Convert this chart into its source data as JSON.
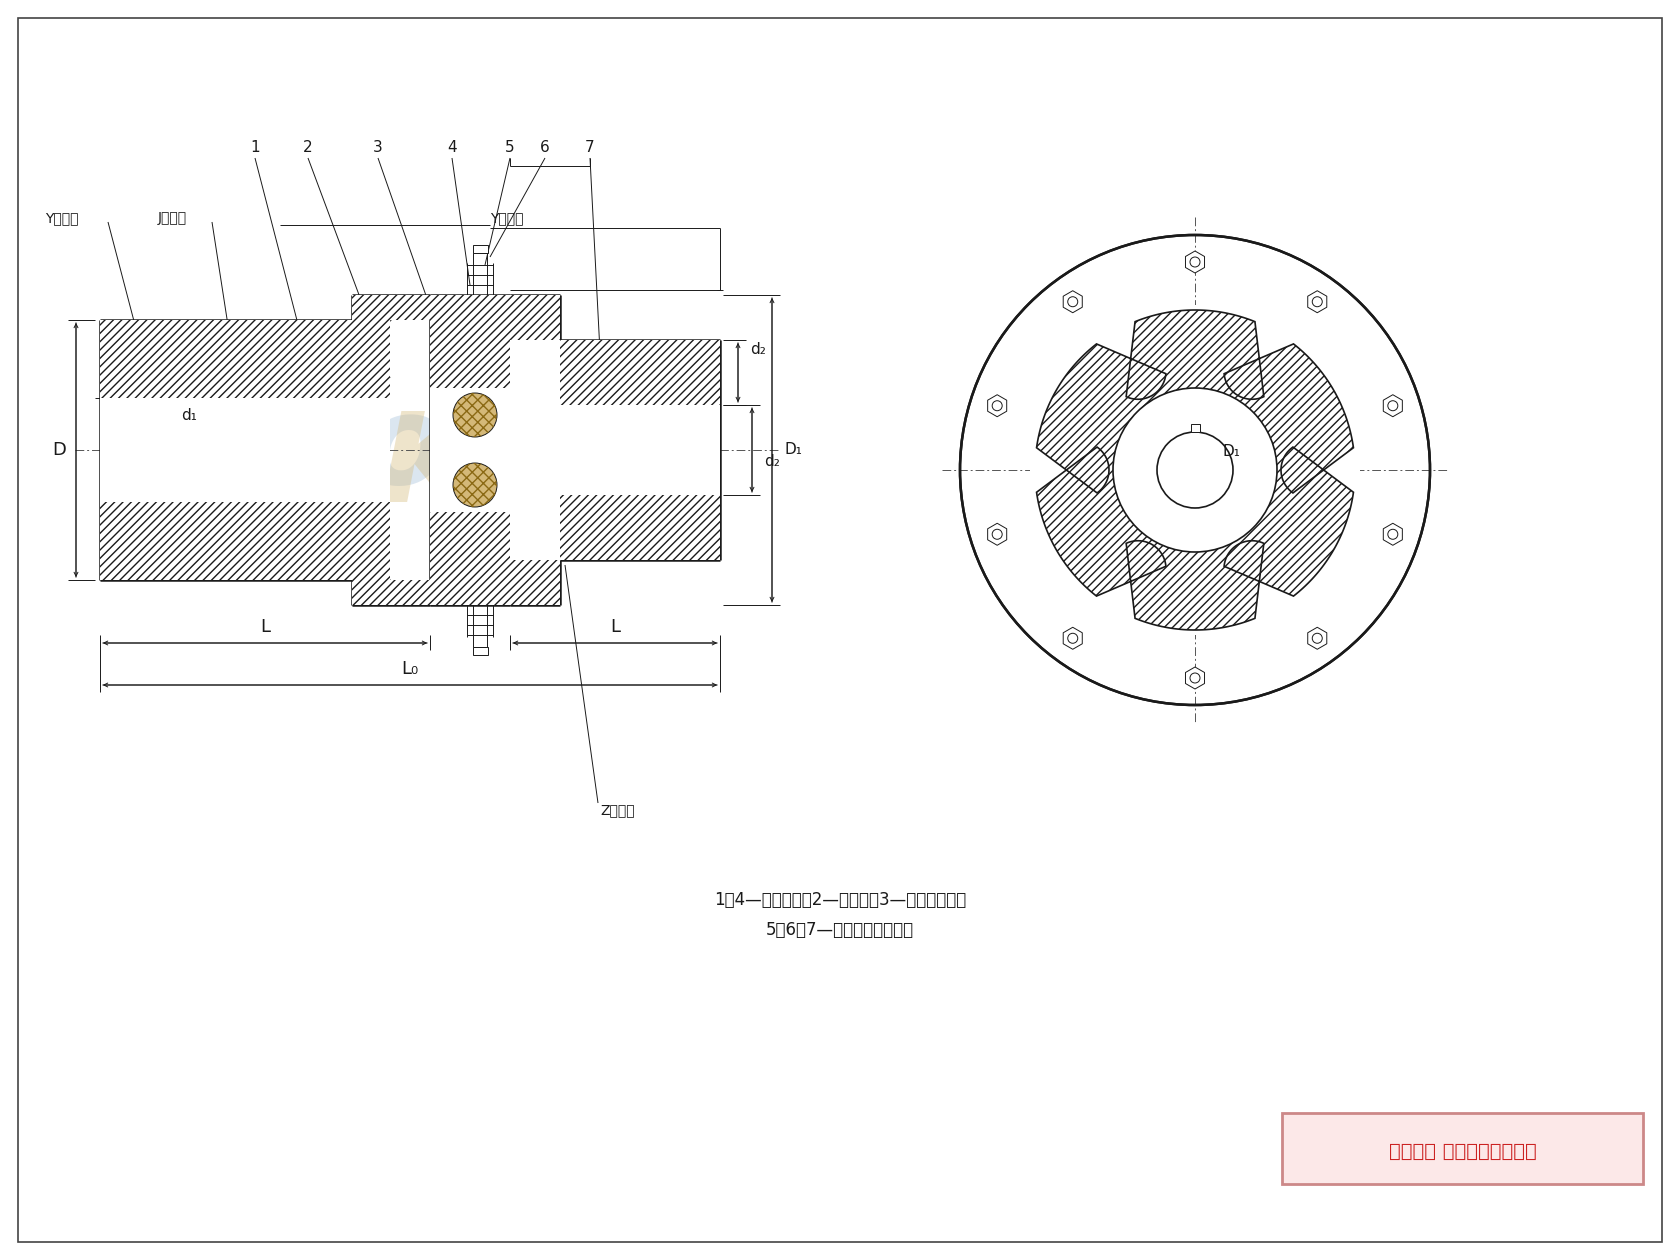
{
  "bg_color": "#ffffff",
  "lc": "#1a1a1a",
  "caption1": "1、4—半联轴器；2—弹性件；3—法兰连接件；",
  "caption2": "5、6、7—螺栓、螺母、垫片",
  "copyright": "版权所有 侵权必被严厉追究",
  "label_Y1": "Y型轴孔",
  "label_J": "J型轴孔",
  "label_Y2": "Y型轴孔",
  "label_Z": "Z型轴孔",
  "dim_D": "D",
  "dim_d1": "d₁",
  "dim_d2": "d₂",
  "dim_dz": "d₂",
  "dim_D1": "D₁",
  "dim_L": "L",
  "dim_L0": "L₀",
  "num_labels": [
    "1",
    "2",
    "3",
    "4",
    "5",
    "6",
    "7"
  ],
  "wm_r_color": "#b0c8de",
  "wm_k_color": "#d4b878"
}
